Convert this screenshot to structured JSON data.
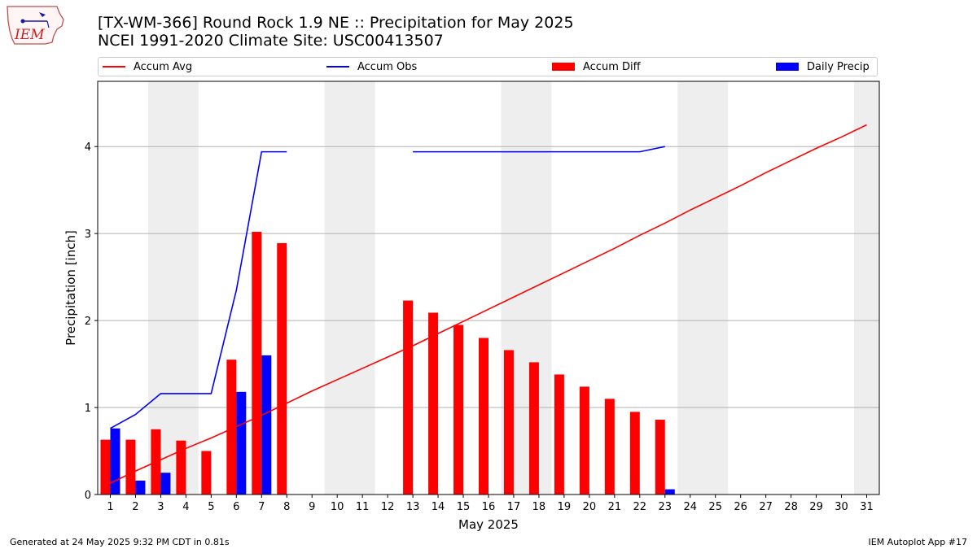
{
  "header": {
    "title": "[TX-WM-366] Round Rock 1.9 NE :: Precipitation for May 2025",
    "subtitle": "NCEI 1991-2020 Climate Site: USC00413507"
  },
  "logo": {
    "text": "IEM",
    "icon": "iem-iowa-logo-icon"
  },
  "footer": {
    "left": "Generated at 24 May 2025 9:32 PM CDT in 0.81s",
    "right": "IEM Autoplot App #17"
  },
  "colors": {
    "avg": "#ff0000",
    "obs": "#0000ff",
    "diff": "#ff0000",
    "daily": "#0000ff",
    "weekend_band": "#eeeeee",
    "grid": "#b0b0b0"
  },
  "chart_data": {
    "type": "bar",
    "xlabel": "May 2025",
    "ylabel": "Precipitation [inch]",
    "xlim": [
      0.5,
      31.5
    ],
    "ylim": [
      0,
      4.75
    ],
    "yticks": [
      0,
      1,
      2,
      3,
      4
    ],
    "x": [
      1,
      2,
      3,
      4,
      5,
      6,
      7,
      8,
      9,
      10,
      11,
      12,
      13,
      14,
      15,
      16,
      17,
      18,
      19,
      20,
      21,
      22,
      23,
      24,
      25,
      26,
      27,
      28,
      29,
      30,
      31
    ],
    "weekend_bands": [
      [
        2.5,
        4.5
      ],
      [
        9.5,
        11.5
      ],
      [
        16.5,
        18.5
      ],
      [
        23.5,
        25.5
      ],
      [
        30.5,
        31.5
      ]
    ],
    "grid": "horizontal",
    "legend": {
      "placement": "top",
      "entries": [
        "Accum Avg",
        "Accum Obs",
        "Accum Diff",
        "Daily Precip"
      ]
    },
    "series": [
      {
        "name": "Accum Avg",
        "kind": "line",
        "values": [
          0.13,
          0.27,
          0.4,
          0.53,
          0.65,
          0.78,
          0.91,
          1.05,
          1.19,
          1.32,
          1.45,
          1.58,
          1.71,
          1.85,
          1.99,
          2.13,
          2.27,
          2.41,
          2.55,
          2.69,
          2.83,
          2.98,
          3.12,
          3.27,
          3.41,
          3.55,
          3.7,
          3.84,
          3.98,
          4.11,
          4.25
        ]
      },
      {
        "name": "Accum Obs",
        "kind": "line",
        "values": [
          0.76,
          0.92,
          1.16,
          1.16,
          1.16,
          2.35,
          3.94,
          3.94,
          null,
          null,
          null,
          null,
          3.94,
          3.94,
          3.94,
          3.94,
          3.94,
          3.94,
          3.94,
          3.94,
          3.94,
          3.94,
          4.0,
          null,
          null,
          null,
          null,
          null,
          null,
          null,
          null
        ]
      },
      {
        "name": "Accum Diff",
        "kind": "bar",
        "values": [
          0.63,
          0.63,
          0.75,
          0.62,
          0.5,
          1.55,
          3.02,
          2.89,
          null,
          null,
          null,
          null,
          2.23,
          2.09,
          1.95,
          1.8,
          1.66,
          1.52,
          1.38,
          1.24,
          1.1,
          0.95,
          0.86,
          null,
          null,
          null,
          null,
          null,
          null,
          null,
          null
        ]
      },
      {
        "name": "Daily Precip",
        "kind": "bar",
        "values": [
          0.76,
          0.16,
          0.25,
          0,
          0,
          1.18,
          1.6,
          0,
          null,
          null,
          null,
          null,
          0,
          0,
          0,
          0,
          0,
          0,
          0,
          0,
          0,
          0,
          0.06,
          null,
          null,
          null,
          null,
          null,
          null,
          null,
          null
        ]
      }
    ]
  }
}
